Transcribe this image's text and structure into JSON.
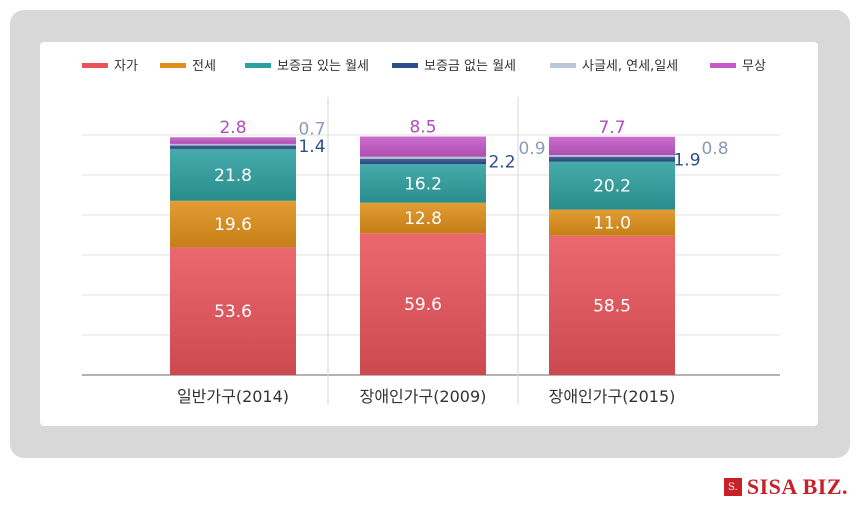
{
  "chart_data": {
    "type": "bar",
    "stacked": true,
    "categories": [
      "일반가구(2014)",
      "장애인가구(2009)",
      "장애인가구(2015)"
    ],
    "series": [
      {
        "name": "자가",
        "color": "#e8545a",
        "values": [
          53.6,
          59.6,
          58.5
        ]
      },
      {
        "name": "전세",
        "color": "#e0901a",
        "values": [
          19.6,
          12.8,
          11.0
        ]
      },
      {
        "name": "보증금 있는 월세",
        "color": "#2fa0a0",
        "values": [
          21.8,
          16.2,
          20.2
        ]
      },
      {
        "name": "보증금 없는 월세",
        "color": "#2c4e8a",
        "values": [
          1.4,
          2.2,
          1.9
        ]
      },
      {
        "name": "사글세, 연세,일세",
        "color": "#b9c6dc",
        "values": [
          0.7,
          0.9,
          0.8
        ]
      },
      {
        "name": "무상",
        "color": "#c45ac8",
        "values": [
          2.8,
          8.5,
          7.7
        ]
      }
    ],
    "ylim": [
      0,
      100
    ],
    "legend": "top",
    "grid": true
  },
  "colors": {
    "label_dark_blue": "#2c4e8a",
    "label_light_blue": "#8a9ab8",
    "label_purple": "#b04cc0"
  },
  "logo": {
    "mark": "S.",
    "text": "SISA BIZ."
  }
}
